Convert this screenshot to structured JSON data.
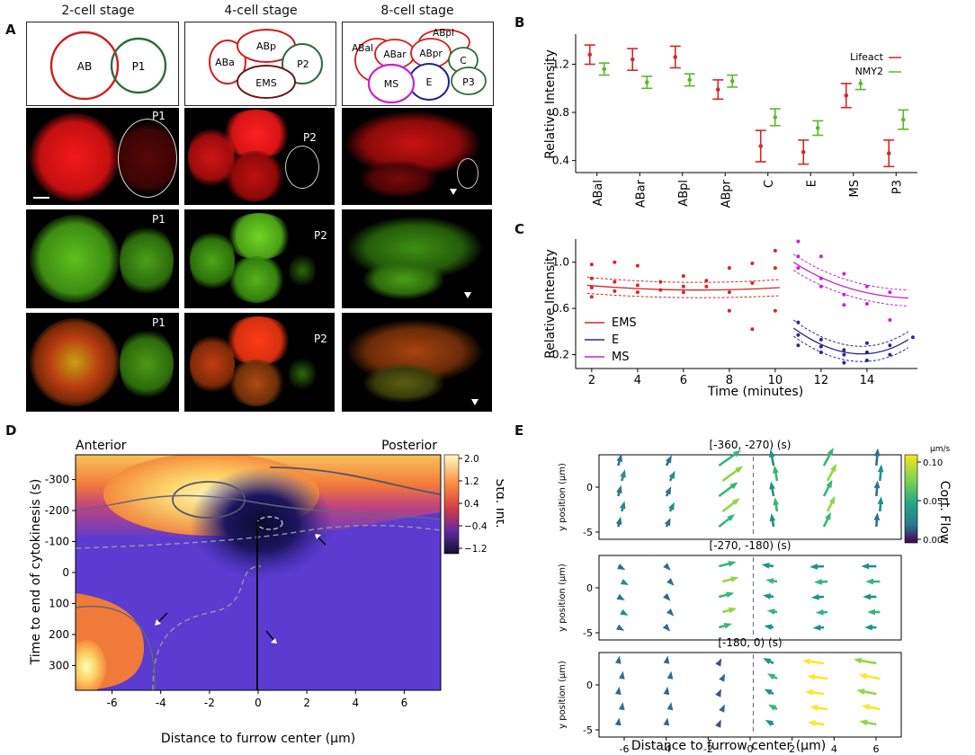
{
  "panel_labels": {
    "a": "A",
    "b": "B",
    "c": "C",
    "d": "D",
    "e": "E"
  },
  "panel_a": {
    "stages": [
      "2-cell stage",
      "4-cell stage",
      "8-cell stage"
    ],
    "cells_2": [
      "AB",
      "P1"
    ],
    "cells_4": [
      "ABp",
      "ABa",
      "P2",
      "EMS"
    ],
    "cells_8": [
      "ABal",
      "ABpl",
      "ABar",
      "ABpr",
      "C",
      "MS",
      "E",
      "P3"
    ],
    "micro_labels": {
      "p1": "P1",
      "p2": "P2"
    },
    "colors": {
      "lifeact": "#e0201c",
      "nmy2": "#3b9a2a",
      "ms": "#cc22cc",
      "e": "#2a2a8a"
    }
  },
  "chart_data": [
    {
      "id": "B",
      "type": "scatter",
      "ylabel": "Relative Intensity",
      "categories": [
        "ABal",
        "ABar",
        "ABpl",
        "ABpr",
        "C",
        "E",
        "MS",
        "P3"
      ],
      "yticks": [
        "0.4",
        "0.8",
        "1.2"
      ],
      "ylim": [
        0.3,
        1.45
      ],
      "legend": [
        "Lifeact",
        "NMY2"
      ],
      "series": [
        {
          "name": "Lifeact",
          "color": "#d62728",
          "mean": [
            1.28,
            1.24,
            1.26,
            0.99,
            0.52,
            0.47,
            0.94,
            0.46
          ],
          "err": [
            0.08,
            0.09,
            0.09,
            0.08,
            0.13,
            0.1,
            0.1,
            0.11
          ]
        },
        {
          "name": "NMY2",
          "color": "#5cb82a",
          "mean": [
            1.16,
            1.05,
            1.07,
            1.06,
            0.76,
            0.67,
            1.04,
            0.74
          ],
          "err": [
            0.05,
            0.05,
            0.05,
            0.05,
            0.07,
            0.06,
            0.05,
            0.08
          ]
        }
      ]
    },
    {
      "id": "C",
      "type": "line",
      "xlabel": "Time (minutes)",
      "ylabel": "Relative Intensity",
      "xticks": [
        "2",
        "4",
        "6",
        "8",
        "10",
        "12",
        "14"
      ],
      "yticks": [
        "0.2",
        "0.6",
        "1.0"
      ],
      "xlim": [
        1.3,
        16.2
      ],
      "ylim": [
        0.08,
        1.2
      ],
      "legend": [
        "EMS",
        "E",
        "MS"
      ],
      "ems_points": [
        [
          2,
          0.98
        ],
        [
          2,
          0.86
        ],
        [
          2,
          0.78
        ],
        [
          2,
          0.7
        ],
        [
          3,
          1.0
        ],
        [
          3,
          0.83
        ],
        [
          3,
          0.75
        ],
        [
          4,
          0.97
        ],
        [
          4,
          0.8
        ],
        [
          4,
          0.74
        ],
        [
          5,
          0.83
        ],
        [
          5,
          0.76
        ],
        [
          6,
          0.88
        ],
        [
          6,
          0.79
        ],
        [
          6,
          0.74
        ],
        [
          7,
          0.84
        ],
        [
          7,
          0.79
        ],
        [
          8,
          0.95
        ],
        [
          8,
          0.74
        ],
        [
          8,
          0.58
        ],
        [
          9,
          0.99
        ],
        [
          9,
          0.82
        ],
        [
          9,
          0.42
        ],
        [
          10,
          1.1
        ],
        [
          10,
          0.95
        ],
        [
          10,
          0.58
        ]
      ],
      "ms_points": [
        [
          11,
          1.18
        ],
        [
          11,
          1.05
        ],
        [
          11,
          0.95
        ],
        [
          12,
          1.05
        ],
        [
          12,
          0.86
        ],
        [
          12,
          0.79
        ],
        [
          13,
          0.9
        ],
        [
          13,
          0.72
        ],
        [
          13,
          0.63
        ],
        [
          14,
          0.79
        ],
        [
          14,
          0.64
        ],
        [
          15,
          0.74
        ],
        [
          15,
          0.5
        ]
      ],
      "e_points": [
        [
          11,
          0.48
        ],
        [
          11,
          0.37
        ],
        [
          11,
          0.28
        ],
        [
          12,
          0.33
        ],
        [
          12,
          0.27
        ],
        [
          12,
          0.22
        ],
        [
          13,
          0.24
        ],
        [
          13,
          0.2
        ],
        [
          13,
          0.13
        ],
        [
          14,
          0.3
        ],
        [
          14,
          0.22
        ],
        [
          14,
          0.15
        ],
        [
          15,
          0.28
        ],
        [
          15,
          0.2
        ],
        [
          16,
          0.35
        ]
      ],
      "ems_fit": [
        [
          1.8,
          0.8
        ],
        [
          6,
          0.76
        ],
        [
          10.2,
          0.78
        ]
      ],
      "ms_fit": [
        [
          10.8,
          1.0
        ],
        [
          13,
          0.78
        ],
        [
          15.8,
          0.69
        ]
      ],
      "e_fit": [
        [
          10.8,
          0.43
        ],
        [
          13.5,
          0.21
        ],
        [
          15.8,
          0.33
        ]
      ]
    },
    {
      "id": "D",
      "type": "heatmap",
      "xlabel": "Distance to furrow center (μm)",
      "ylabel": "Time to end of cytokinesis (s)",
      "xticks": [
        "-6",
        "-4",
        "-2",
        "0",
        "2",
        "4",
        "6"
      ],
      "yticks": [
        "-300",
        "-200",
        "-100",
        "0",
        "100",
        "200",
        "300"
      ],
      "xlim": [
        -7.5,
        7.5
      ],
      "ylim": [
        -380,
        380
      ],
      "colorbar_label": "Std. Int.",
      "colorbar_ticks": [
        "2.0",
        "1.2",
        "0.4",
        "−0.4",
        "−1.2"
      ],
      "top_labels": [
        "Anterior",
        "Posterior"
      ]
    },
    {
      "id": "E",
      "type": "quiver",
      "xlabel": "Distance to furrow center (μm)",
      "ylabel": "y position (μm)",
      "xticks": [
        "-6",
        "-4",
        "-2",
        "0",
        "2",
        "4",
        "6"
      ],
      "yticks": [
        "0",
        "-5"
      ],
      "titles": [
        "[-360, -270) (s)",
        "[-270, -180) (s)",
        "[-180, 0) (s)"
      ],
      "colorbar_label": "Cort. Flow",
      "colorbar_unit": "μm/s",
      "colorbar_ticks": [
        "0.10",
        "0.05",
        "0.00"
      ]
    }
  ]
}
